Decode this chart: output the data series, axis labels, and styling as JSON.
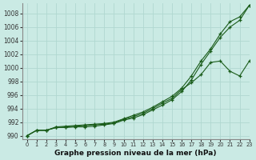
{
  "title": "Graphe pression niveau de la mer (hPa)",
  "bg_color": "#caeae4",
  "grid_color": "#b0d8d0",
  "line_color": "#1a5c1a",
  "xlim": [
    -0.5,
    23
  ],
  "ylim": [
    989.5,
    1009.5
  ],
  "yticks": [
    990,
    992,
    994,
    996,
    998,
    1000,
    1002,
    1004,
    1006,
    1008
  ],
  "xticks": [
    0,
    1,
    2,
    3,
    4,
    5,
    6,
    7,
    8,
    9,
    10,
    11,
    12,
    13,
    14,
    15,
    16,
    17,
    18,
    19,
    20,
    21,
    22,
    23
  ],
  "series": [
    [
      990.0,
      990.8,
      990.8,
      991.2,
      991.2,
      991.3,
      991.3,
      991.4,
      991.6,
      991.8,
      992.3,
      992.6,
      993.1,
      993.8,
      994.5,
      995.3,
      996.5,
      998.2,
      1000.5,
      1002.5,
      1004.5,
      1006.0,
      1007.0,
      1009.2
    ],
    [
      990.0,
      990.8,
      990.8,
      991.3,
      991.4,
      991.5,
      991.6,
      991.7,
      991.8,
      992.0,
      992.5,
      993.0,
      993.5,
      994.2,
      995.0,
      995.8,
      997.0,
      998.8,
      1001.0,
      1002.8,
      1005.0,
      1006.8,
      1007.5,
      1009.2
    ],
    [
      990.0,
      990.8,
      990.8,
      991.2,
      991.3,
      991.4,
      991.5,
      991.6,
      991.7,
      991.9,
      992.4,
      992.8,
      993.3,
      994.0,
      994.8,
      995.5,
      996.8,
      997.8,
      999.0,
      1000.8,
      1001.0,
      999.5,
      998.8,
      1001.0
    ]
  ]
}
